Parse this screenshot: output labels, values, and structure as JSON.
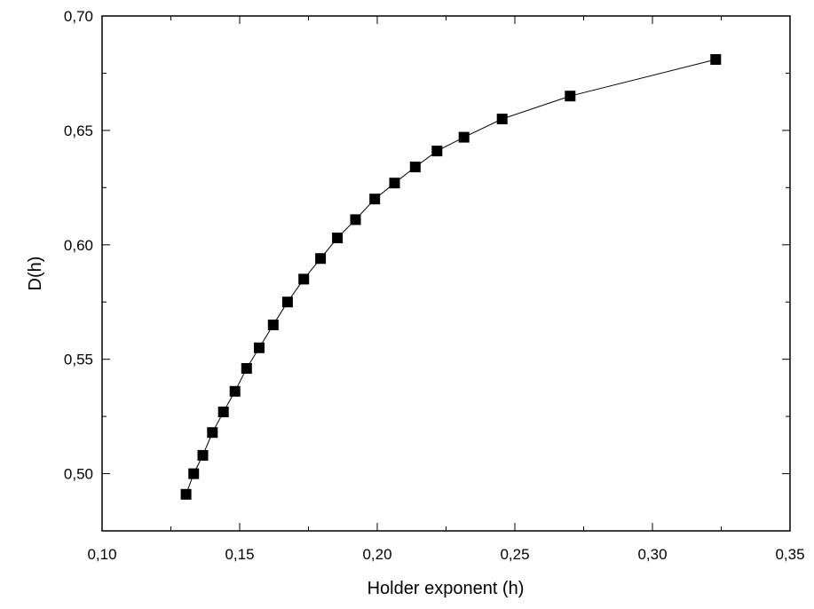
{
  "chart_data": {
    "type": "scatter",
    "xlabel": "Holder exponent (h)",
    "ylabel": "D(h)",
    "xlim": [
      0.1,
      0.35
    ],
    "ylim": [
      0.475,
      0.7
    ],
    "x_ticks": [
      "0,10",
      "0,15",
      "0,20",
      "0,25",
      "0,30",
      "0,35"
    ],
    "y_ticks": [
      "0,50",
      "0,55",
      "0,60",
      "0,65",
      "0,70"
    ],
    "grid": false,
    "marker": "square",
    "connect_points": true,
    "series": [
      {
        "x": [
          0.1305,
          0.1333,
          0.1366,
          0.1401,
          0.1441,
          0.1483,
          0.1525,
          0.1571,
          0.1622,
          0.1674,
          0.1733,
          0.1794,
          0.1855,
          0.1921,
          0.1991,
          0.2063,
          0.2138,
          0.2217,
          0.2315,
          0.2454,
          0.2701,
          0.323
        ],
        "y": [
          0.491,
          0.5,
          0.508,
          0.518,
          0.527,
          0.536,
          0.546,
          0.555,
          0.565,
          0.575,
          0.585,
          0.594,
          0.603,
          0.611,
          0.62,
          0.627,
          0.634,
          0.641,
          0.647,
          0.655,
          0.665,
          0.681
        ]
      }
    ],
    "colors": {
      "marker": "#000000",
      "line": "#000000",
      "axis": "#000000"
    }
  }
}
